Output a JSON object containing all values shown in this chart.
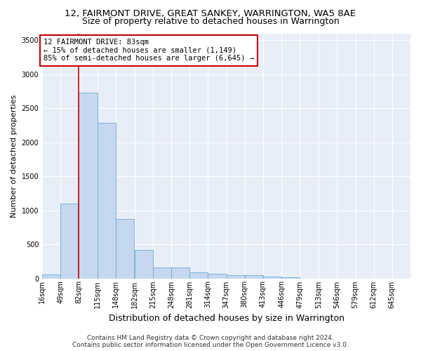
{
  "title_line1": "12, FAIRMONT DRIVE, GREAT SANKEY, WARRINGTON, WA5 8AE",
  "title_line2": "Size of property relative to detached houses in Warrington",
  "xlabel": "Distribution of detached houses by size in Warrington",
  "ylabel": "Number of detached properties",
  "bar_color": "#c5d8f0",
  "bar_edge_color": "#6aaad4",
  "background_color": "#e8eef8",
  "grid_color": "#ffffff",
  "annotation_box_color": "#cc0000",
  "annotation_line1": "12 FAIRMONT DRIVE: 83sqm",
  "annotation_line2": "← 15% of detached houses are smaller (1,149)",
  "annotation_line3": "85% of semi-detached houses are larger (6,645) →",
  "property_line_x": 82,
  "property_line_color": "#cc0000",
  "bin_edges": [
    16,
    49,
    82,
    115,
    148,
    182,
    215,
    248,
    281,
    314,
    347,
    380,
    413,
    446,
    479,
    513,
    546,
    579,
    612,
    645,
    678
  ],
  "bar_heights": [
    55,
    1100,
    2730,
    2280,
    870,
    420,
    165,
    165,
    90,
    65,
    50,
    50,
    30,
    20,
    0,
    0,
    0,
    0,
    0,
    0
  ],
  "ylim": [
    0,
    3600
  ],
  "yticks": [
    0,
    500,
    1000,
    1500,
    2000,
    2500,
    3000,
    3500
  ],
  "footer_text": "Contains HM Land Registry data © Crown copyright and database right 2024.\nContains public sector information licensed under the Open Government Licence v3.0.",
  "title_fontsize": 9.5,
  "subtitle_fontsize": 9,
  "ylabel_fontsize": 8,
  "xlabel_fontsize": 9,
  "tick_fontsize": 7,
  "annotation_fontsize": 7.5,
  "footer_fontsize": 6.5
}
